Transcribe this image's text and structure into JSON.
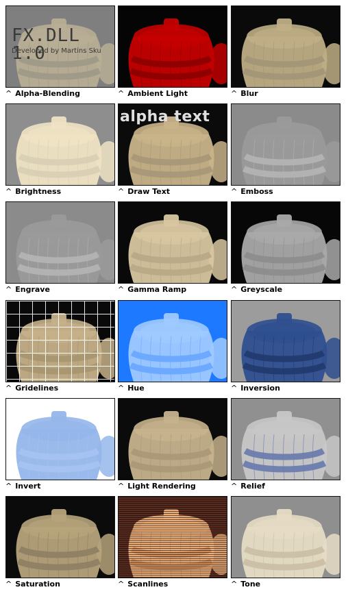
{
  "tiles": [
    {
      "label": "Alpha-Blending",
      "bg": "#7f7f7f",
      "barrel": "#b8ae95",
      "rope": "#9f9a88",
      "overlay_title": "FX.DLL 1.0",
      "overlay_sub": "Developed by Martins Sku"
    },
    {
      "label": "Ambient Light",
      "bg": "#050505",
      "barrel": "#c40000",
      "rope": "#8e0000"
    },
    {
      "label": "Blur",
      "bg": "#0a0a0a",
      "barrel": "#bfae86",
      "rope": "#a39677"
    },
    {
      "label": "Brightness",
      "bg": "#8e8e8e",
      "barrel": "#efe3c4",
      "rope": "#d9cfb5"
    },
    {
      "label": "Draw Text",
      "bg": "#0b0b0b",
      "barrel": "#c9b48a",
      "rope": "#a89878",
      "overlay_text": "alpha text"
    },
    {
      "label": "Emboss",
      "bg": "#8b8b8b",
      "barrel": "#9a9a9a",
      "rope": "#b3b3b3"
    },
    {
      "label": "Engrave",
      "bg": "#8b8b8b",
      "barrel": "#9a9a9a",
      "rope": "#b3b3b3"
    },
    {
      "label": "Gamma Ramp",
      "bg": "#090909",
      "barrel": "#d7c6a0",
      "rope": "#b9a986"
    },
    {
      "label": "Greyscale",
      "bg": "#070707",
      "barrel": "#a9a9a9",
      "rope": "#8d8d8d"
    },
    {
      "label": "Gridelines",
      "bg": "#090909",
      "barrel": "#c5b089",
      "rope": "#a89670"
    },
    {
      "label": "Hue",
      "bg": "#1d79ff",
      "barrel": "#9fc9ff",
      "rope": "#6aa9ff"
    },
    {
      "label": "Inversion",
      "bg": "#9c9c9c",
      "barrel": "#2f4f8f",
      "rope": "#223a70"
    },
    {
      "label": "Invert",
      "bg": "#ffffff",
      "barrel": "#95b6ea",
      "rope": "#a7c2f2"
    },
    {
      "label": "Light Rendering",
      "bg": "#0b0b0b",
      "barrel": "#c6b28c",
      "rope": "#aa9877"
    },
    {
      "label": "Relief",
      "bg": "#909090",
      "barrel": "#c7c7c7",
      "rope": "#6b7cae"
    },
    {
      "label": "Saturation",
      "bg": "#0b0b0b",
      "barrel": "#b6a37b",
      "rope": "#8f8064"
    },
    {
      "label": "Scanlines",
      "bg": "#5a2b1f",
      "barrel": "#f0b27c",
      "rope": "#cf8a59"
    },
    {
      "label": "Tone",
      "bg": "#8f8f8f",
      "barrel": "#e6dcc5",
      "rope": "#cbbfa6"
    }
  ]
}
